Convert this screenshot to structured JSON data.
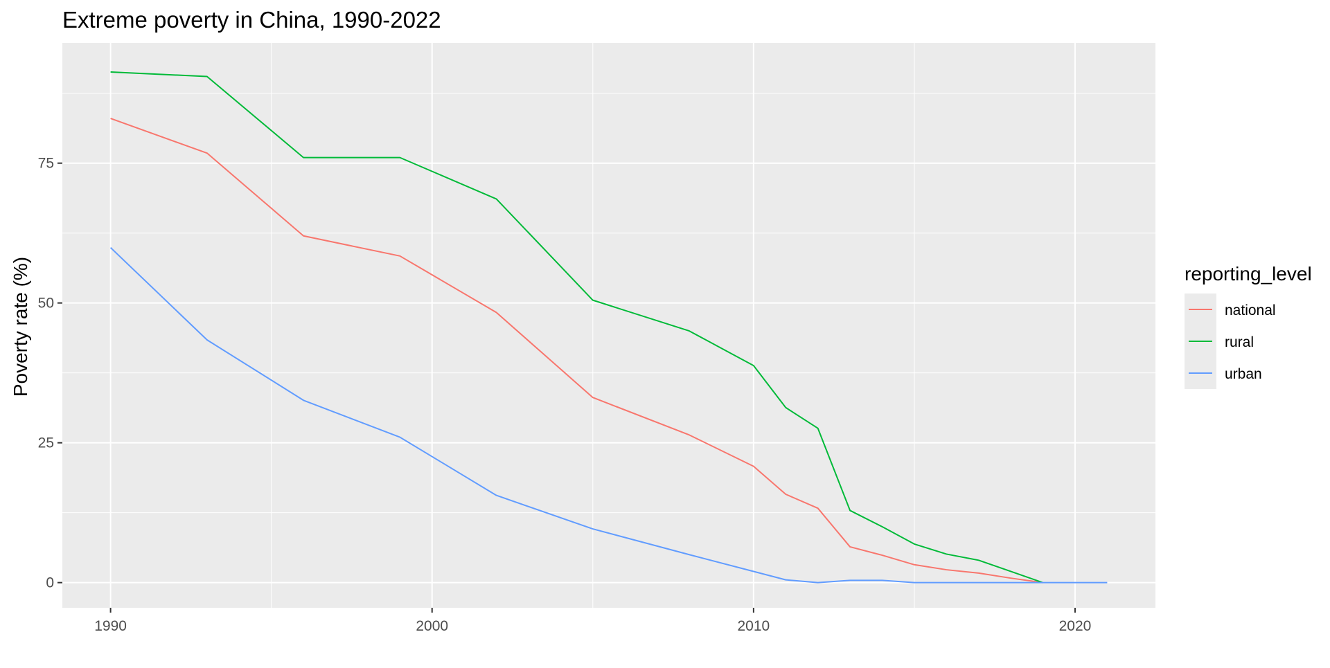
{
  "chart_data": {
    "type": "line",
    "title": "Extreme poverty in China, 1990-2022",
    "xlabel": "",
    "ylabel": "Poverty rate (%)",
    "xlim": [
      1988.5,
      2022.5
    ],
    "ylim": [
      -4.5,
      96.5
    ],
    "x_ticks": [
      1990,
      2000,
      2010,
      2020
    ],
    "x_minor_ticks": [
      1995,
      2005,
      2015
    ],
    "y_ticks": [
      0,
      25,
      50,
      75
    ],
    "y_minor_ticks": [
      12.5,
      37.5,
      62.5,
      87.5
    ],
    "grid": true,
    "legend": {
      "title": "reporting_level",
      "placement": "right"
    },
    "series": [
      {
        "name": "national",
        "color": "#F8766D",
        "points": [
          [
            1990,
            83.0
          ],
          [
            1993,
            76.8
          ],
          [
            1996,
            62.0
          ],
          [
            1999,
            58.4
          ],
          [
            2002,
            48.3
          ],
          [
            2005,
            33.1
          ],
          [
            2008,
            26.4
          ],
          [
            2010,
            20.8
          ],
          [
            2011,
            15.8
          ],
          [
            2012,
            13.3
          ],
          [
            2013,
            6.4
          ],
          [
            2014,
            4.9
          ],
          [
            2015,
            3.2
          ],
          [
            2016,
            2.3
          ],
          [
            2017,
            1.7
          ],
          [
            2018,
            0.8
          ],
          [
            2019,
            0.0
          ]
        ]
      },
      {
        "name": "rural",
        "color": "#00BA38",
        "points": [
          [
            1990,
            91.3
          ],
          [
            1993,
            90.5
          ],
          [
            1996,
            76.0
          ],
          [
            1999,
            76.0
          ],
          [
            2002,
            68.6
          ],
          [
            2005,
            50.5
          ],
          [
            2008,
            45.0
          ],
          [
            2010,
            38.8
          ],
          [
            2011,
            31.3
          ],
          [
            2012,
            27.6
          ],
          [
            2013,
            12.9
          ],
          [
            2014,
            10.0
          ],
          [
            2015,
            6.9
          ],
          [
            2016,
            5.1
          ],
          [
            2017,
            4.0
          ],
          [
            2018,
            2.0
          ],
          [
            2019,
            0.0
          ]
        ]
      },
      {
        "name": "urban",
        "color": "#619CFF",
        "points": [
          [
            1990,
            59.9
          ],
          [
            1993,
            43.4
          ],
          [
            1996,
            32.6
          ],
          [
            1999,
            26.0
          ],
          [
            2002,
            15.6
          ],
          [
            2005,
            9.6
          ],
          [
            2008,
            5.0
          ],
          [
            2010,
            2.0
          ],
          [
            2011,
            0.5
          ],
          [
            2012,
            0.0
          ],
          [
            2013,
            0.4
          ],
          [
            2014,
            0.4
          ],
          [
            2015,
            0.0
          ],
          [
            2016,
            0.0
          ],
          [
            2017,
            0.0
          ],
          [
            2018,
            0.0
          ],
          [
            2019,
            0.0
          ],
          [
            2020,
            0.0
          ],
          [
            2021,
            0.0
          ]
        ]
      }
    ]
  }
}
